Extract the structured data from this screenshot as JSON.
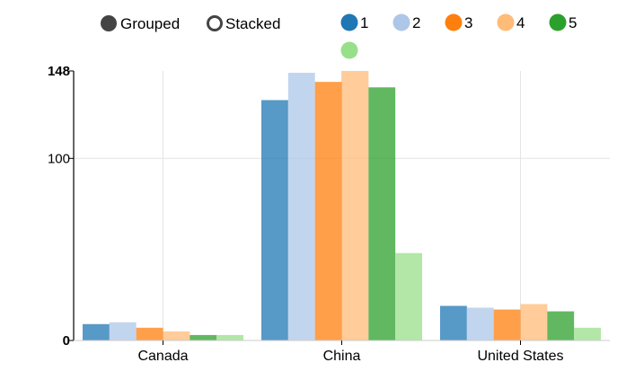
{
  "controls": {
    "grouped_label": "Grouped",
    "stacked_label": "Stacked",
    "selected": "grouped",
    "color": "#444444"
  },
  "chart_data": {
    "type": "bar",
    "mode": "grouped",
    "categories": [
      "Canada",
      "China",
      "United States"
    ],
    "series": [
      {
        "name": "1",
        "color": "#1f77b4",
        "values": [
          9,
          132,
          19
        ]
      },
      {
        "name": "2",
        "color": "#aec7e8",
        "values": [
          10,
          147,
          18
        ]
      },
      {
        "name": "3",
        "color": "#ff7f0e",
        "values": [
          7,
          142,
          17
        ]
      },
      {
        "name": "4",
        "color": "#ffbb78",
        "values": [
          5,
          148,
          20
        ]
      },
      {
        "name": "5",
        "color": "#2ca02c",
        "values": [
          3,
          139,
          16
        ]
      },
      {
        "name": "",
        "color": "#98df8a",
        "values": [
          3,
          48,
          7
        ]
      }
    ],
    "yticks": [
      {
        "value": 0,
        "label": "0",
        "bold": true
      },
      {
        "value": 100,
        "label": "100",
        "bold": false
      },
      {
        "value": 148,
        "label": "148",
        "bold": true
      }
    ],
    "ylim": [
      0,
      148
    ],
    "grid": true,
    "legend_position": "top-right",
    "title": "",
    "xlabel": "",
    "ylabel": ""
  }
}
